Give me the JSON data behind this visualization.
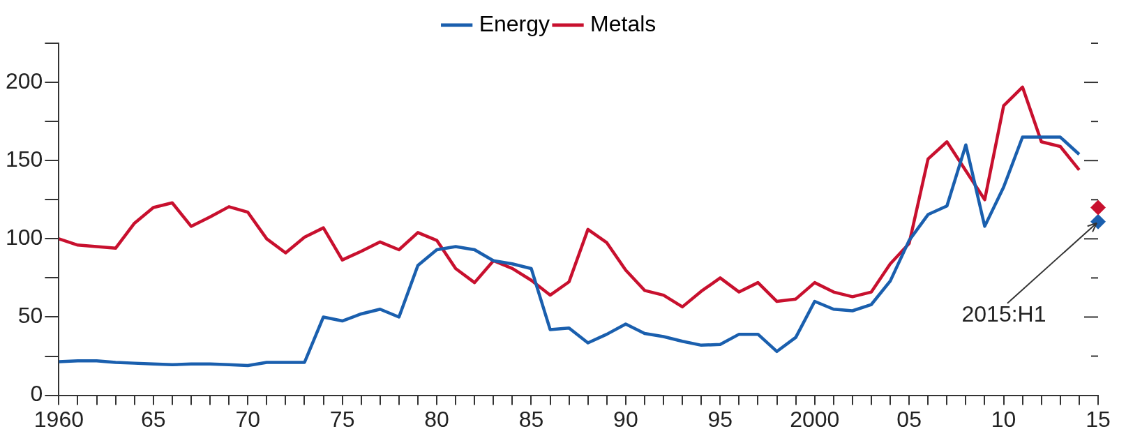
{
  "chart_data": {
    "type": "line",
    "x": [
      1960,
      1961,
      1962,
      1963,
      1964,
      1965,
      1966,
      1967,
      1968,
      1969,
      1970,
      1971,
      1972,
      1973,
      1974,
      1975,
      1976,
      1977,
      1978,
      1979,
      1980,
      1981,
      1982,
      1983,
      1984,
      1985,
      1986,
      1987,
      1988,
      1989,
      1990,
      1991,
      1992,
      1993,
      1994,
      1995,
      1996,
      1997,
      1998,
      1999,
      2000,
      2001,
      2002,
      2003,
      2004,
      2005,
      2006,
      2007,
      2008,
      2009,
      2010,
      2011,
      2012,
      2013,
      2014
    ],
    "series": [
      {
        "name": "Energy",
        "color": "#1a5fae",
        "values": [
          21.5,
          22,
          22,
          21,
          20.5,
          20,
          19.5,
          20,
          20,
          19.5,
          19,
          21,
          21,
          21,
          50,
          47.5,
          52,
          55,
          50,
          83,
          93,
          95,
          93,
          86,
          84,
          81,
          42,
          43,
          33.5,
          39,
          45.5,
          39.5,
          37.5,
          34.5,
          32,
          32.5,
          39,
          39,
          28,
          37,
          60,
          55,
          54,
          58,
          73,
          99,
          115.5,
          121,
          160,
          108,
          133,
          165,
          165,
          165,
          154
        ]
      },
      {
        "name": "Metals",
        "color": "#c8102e",
        "values": [
          100,
          96,
          95,
          94,
          110,
          120,
          123,
          108,
          114,
          120.5,
          117,
          100,
          91,
          101,
          107,
          86.5,
          92,
          98,
          93,
          104,
          99,
          81,
          72,
          86,
          81,
          73.5,
          64,
          72.5,
          106,
          97.5,
          80,
          67,
          64,
          56.5,
          66.5,
          75,
          66,
          72,
          60,
          61.5,
          72,
          66,
          63,
          66,
          84,
          97,
          151,
          162,
          143.5,
          125,
          185,
          197,
          162,
          159,
          144
        ]
      },
      {
        "type": "scatter",
        "marker": "diamond",
        "color": "#c8102e",
        "x": [
          2015
        ],
        "values": [
          120
        ]
      },
      {
        "type": "scatter",
        "marker": "diamond",
        "color": "#1a5fae",
        "x": [
          2015
        ],
        "values": [
          111
        ]
      }
    ],
    "xlim": [
      1960,
      2015
    ],
    "xticks": [
      {
        "value": 1960,
        "label": "1960"
      },
      {
        "value": 1961,
        "label": null
      },
      {
        "value": 1962,
        "label": null
      },
      {
        "value": 1963,
        "label": null
      },
      {
        "value": 1964,
        "label": null
      },
      {
        "value": 1965,
        "label": "65"
      },
      {
        "value": 1966,
        "label": null
      },
      {
        "value": 1967,
        "label": null
      },
      {
        "value": 1968,
        "label": null
      },
      {
        "value": 1969,
        "label": null
      },
      {
        "value": 1970,
        "label": "70"
      },
      {
        "value": 1971,
        "label": null
      },
      {
        "value": 1972,
        "label": null
      },
      {
        "value": 1973,
        "label": null
      },
      {
        "value": 1974,
        "label": null
      },
      {
        "value": 1975,
        "label": "75"
      },
      {
        "value": 1976,
        "label": null
      },
      {
        "value": 1977,
        "label": null
      },
      {
        "value": 1978,
        "label": null
      },
      {
        "value": 1979,
        "label": null
      },
      {
        "value": 1980,
        "label": "80"
      },
      {
        "value": 1981,
        "label": null
      },
      {
        "value": 1982,
        "label": null
      },
      {
        "value": 1983,
        "label": null
      },
      {
        "value": 1984,
        "label": null
      },
      {
        "value": 1985,
        "label": "85"
      },
      {
        "value": 1986,
        "label": null
      },
      {
        "value": 1987,
        "label": null
      },
      {
        "value": 1988,
        "label": null
      },
      {
        "value": 1989,
        "label": null
      },
      {
        "value": 1990,
        "label": "90"
      },
      {
        "value": 1991,
        "label": null
      },
      {
        "value": 1992,
        "label": null
      },
      {
        "value": 1993,
        "label": null
      },
      {
        "value": 1994,
        "label": null
      },
      {
        "value": 1995,
        "label": "95"
      },
      {
        "value": 1996,
        "label": null
      },
      {
        "value": 1997,
        "label": null
      },
      {
        "value": 1998,
        "label": null
      },
      {
        "value": 1999,
        "label": null
      },
      {
        "value": 2000,
        "label": "2000"
      },
      {
        "value": 2001,
        "label": null
      },
      {
        "value": 2002,
        "label": null
      },
      {
        "value": 2003,
        "label": null
      },
      {
        "value": 2004,
        "label": null
      },
      {
        "value": 2005,
        "label": "05"
      },
      {
        "value": 2006,
        "label": null
      },
      {
        "value": 2007,
        "label": null
      },
      {
        "value": 2008,
        "label": null
      },
      {
        "value": 2009,
        "label": null
      },
      {
        "value": 2010,
        "label": "10"
      },
      {
        "value": 2011,
        "label": null
      },
      {
        "value": 2012,
        "label": null
      },
      {
        "value": 2013,
        "label": null
      },
      {
        "value": 2014,
        "label": null
      },
      {
        "value": 2015,
        "label": "15"
      }
    ],
    "ylim": [
      0,
      225
    ],
    "yticks": [
      0,
      {
        "value": 25,
        "label": null
      },
      50,
      {
        "value": 75,
        "label": null
      },
      100,
      {
        "value": 125,
        "label": null
      },
      150,
      {
        "value": 175,
        "label": null
      },
      200,
      {
        "value": 225,
        "label": null
      }
    ],
    "annotations": [
      {
        "text": "2015:H1",
        "x": 2015,
        "y": 111
      }
    ],
    "legend": "top",
    "grid": false,
    "marker": "none",
    "line_style": "solid"
  }
}
